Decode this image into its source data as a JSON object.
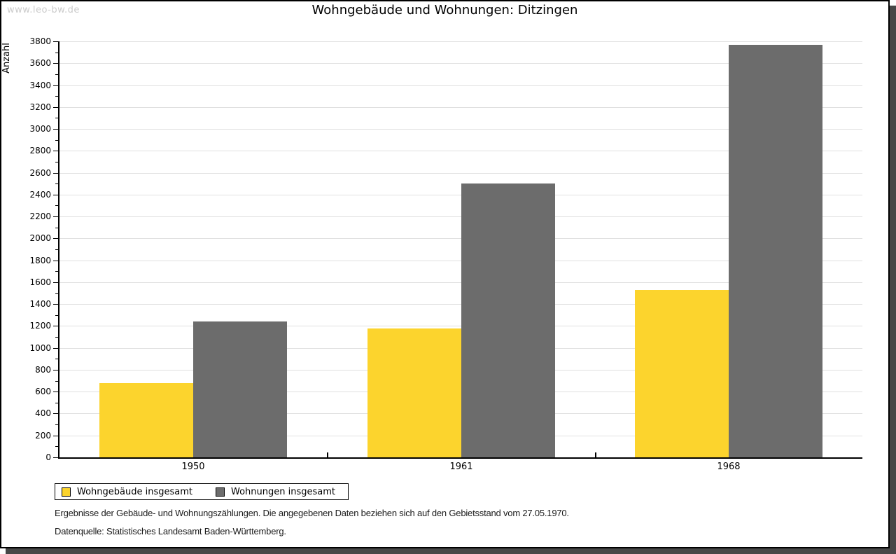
{
  "page": {
    "watermark": "www.leo-bw.de",
    "footnotes": [
      "Ergebnisse der Gebäude- und Wohnungszählungen. Die angegebenen Daten beziehen sich auf den Gebietsstand vom 27.05.1970.",
      "Datenquelle: Statistisches Landesamt Baden-Württemberg."
    ]
  },
  "chart_data": {
    "type": "bar",
    "title": "Wohngebäude und Wohnungen: Ditzingen",
    "ylabel": "Anzahl",
    "xlabel": "",
    "categories": [
      "1950",
      "1961",
      "1968"
    ],
    "series": [
      {
        "name": "Wohngebäude insgesamt",
        "color": "#fcd42d",
        "values": [
          680,
          1175,
          1530
        ]
      },
      {
        "name": "Wohnungen insgesamt",
        "color": "#6c6c6c",
        "values": [
          1240,
          2500,
          3770
        ]
      }
    ],
    "ylim": [
      0,
      3800
    ],
    "ytick_step": 200,
    "yminor_step": 100,
    "grid": true,
    "grid_color": "#e0e0e0",
    "legend_position": "bottom-left"
  }
}
